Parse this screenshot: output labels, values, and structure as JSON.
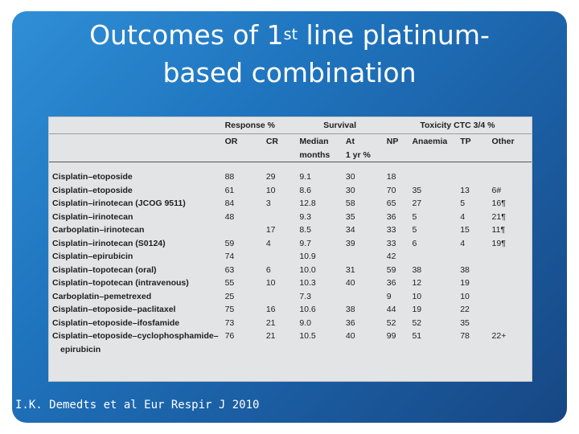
{
  "slide": {
    "title_pre": "Outcomes of 1",
    "title_sup": "st",
    "title_post": " line platinum-",
    "title_line2": "based combination",
    "citation": "I.K. Demedts et al Eur Respir J 2010"
  },
  "table": {
    "group_headers": {
      "response": "Response %",
      "survival": "Survival",
      "toxicity": "Toxicity CTC 3/4 %"
    },
    "col_headers": {
      "or": "OR",
      "cr": "CR",
      "median_1": "Median",
      "median_2": "months",
      "at_1": "At",
      "at_2": "1 yr %",
      "np": "NP",
      "anaemia": "Anaemia",
      "tp": "TP",
      "other": "Other"
    },
    "rows": [
      {
        "regimen": "Cisplatin–etoposide",
        "or": "88",
        "cr": "29",
        "median": "9.1",
        "at1yr": "30",
        "np": "18",
        "anaemia": "",
        "tp": "",
        "other": ""
      },
      {
        "regimen": "Cisplatin–etoposide",
        "or": "61",
        "cr": "10",
        "median": "8.6",
        "at1yr": "30",
        "np": "70",
        "anaemia": "35",
        "tp": "13",
        "other": "6#"
      },
      {
        "regimen": "Cisplatin–irinotecan (JCOG 9511)",
        "or": "84",
        "cr": "3",
        "median": "12.8",
        "at1yr": "58",
        "np": "65",
        "anaemia": "27",
        "tp": "5",
        "other": "16¶"
      },
      {
        "regimen": "Cisplatin–irinotecan",
        "or": "48",
        "cr": "",
        "median": "9.3",
        "at1yr": "35",
        "np": "36",
        "anaemia": "5",
        "tp": "4",
        "other": "21¶"
      },
      {
        "regimen": "Carboplatin–irinotecan",
        "or": "",
        "cr": "17",
        "median": "8.5",
        "at1yr": "34",
        "np": "33",
        "anaemia": "5",
        "tp": "15",
        "other": "11¶"
      },
      {
        "regimen": "Cisplatin–irinotecan (S0124)",
        "or": "59",
        "cr": "4",
        "median": "9.7",
        "at1yr": "39",
        "np": "33",
        "anaemia": "6",
        "tp": "4",
        "other": "19¶"
      },
      {
        "regimen": "Cisplatin–epirubicin",
        "or": "74",
        "cr": "",
        "median": "10.9",
        "at1yr": "",
        "np": "42",
        "anaemia": "",
        "tp": "",
        "other": ""
      },
      {
        "regimen": "Cisplatin–topotecan (oral)",
        "or": "63",
        "cr": "6",
        "median": "10.0",
        "at1yr": "31",
        "np": "59",
        "anaemia": "38",
        "tp": "38",
        "other": ""
      },
      {
        "regimen": "Cisplatin–topotecan (intravenous)",
        "or": "55",
        "cr": "10",
        "median": "10.3",
        "at1yr": "40",
        "np": "36",
        "anaemia": "12",
        "tp": "19",
        "other": ""
      },
      {
        "regimen": "Carboplatin–pemetrexed",
        "or": "25",
        "cr": "",
        "median": "7.3",
        "at1yr": "",
        "np": "9",
        "anaemia": "10",
        "tp": "10",
        "other": ""
      },
      {
        "regimen": "Cisplatin–etoposide–paclitaxel",
        "or": "75",
        "cr": "16",
        "median": "10.6",
        "at1yr": "38",
        "np": "44",
        "anaemia": "19",
        "tp": "22",
        "other": ""
      },
      {
        "regimen": "Cisplatin–etoposide–ifosfamide",
        "or": "73",
        "cr": "21",
        "median": "9.0",
        "at1yr": "36",
        "np": "52",
        "anaemia": "52",
        "tp": "35",
        "other": ""
      },
      {
        "regimen": "Cisplatin–etoposide–cyclophosphamide–",
        "or": "76",
        "cr": "21",
        "median": "10.5",
        "at1yr": "40",
        "np": "99",
        "anaemia": "51",
        "tp": "78",
        "other": "22+"
      }
    ],
    "continuation": "epirubicin"
  }
}
